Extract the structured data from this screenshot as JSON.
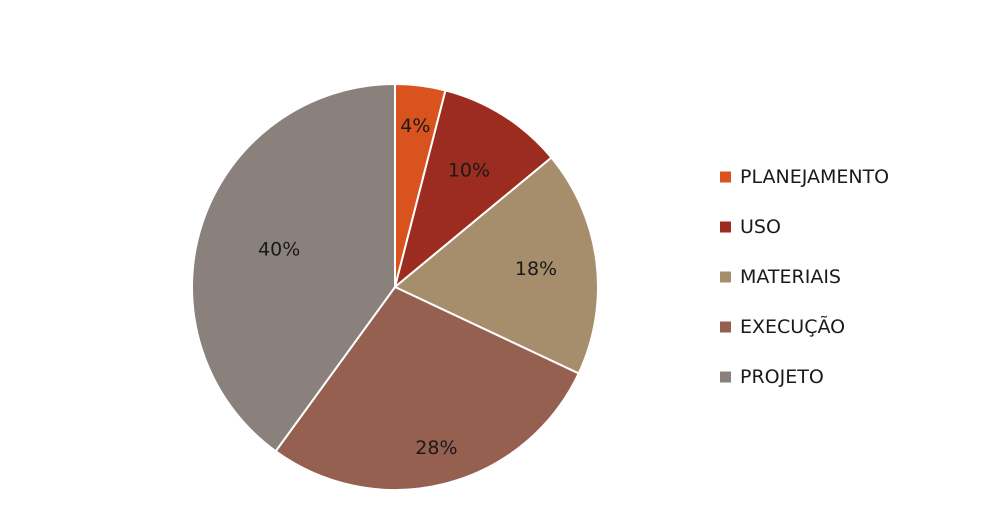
{
  "chart_data": {
    "type": "pie",
    "categories": [
      "PLANEJAMENTO",
      "USO",
      "MATERIAIS",
      "EXECUÇÃO",
      "PROJETO"
    ],
    "values": [
      4,
      10,
      18,
      28,
      40
    ],
    "value_labels": [
      "4%",
      "10%",
      "18%",
      "28%",
      "40%"
    ],
    "colors": [
      "#d9531e",
      "#9b2c1f",
      "#a68e6c",
      "#956050",
      "#8a807c"
    ],
    "legend": {
      "position": "right",
      "entries": [
        "PLANEJAMENTO",
        "USO",
        "MATERIAIS",
        "EXECUÇÃO",
        "PROJETO"
      ]
    },
    "start_angle": "12 o'clock",
    "direction": "clockwise",
    "slice_border_color": "#ffffff"
  }
}
